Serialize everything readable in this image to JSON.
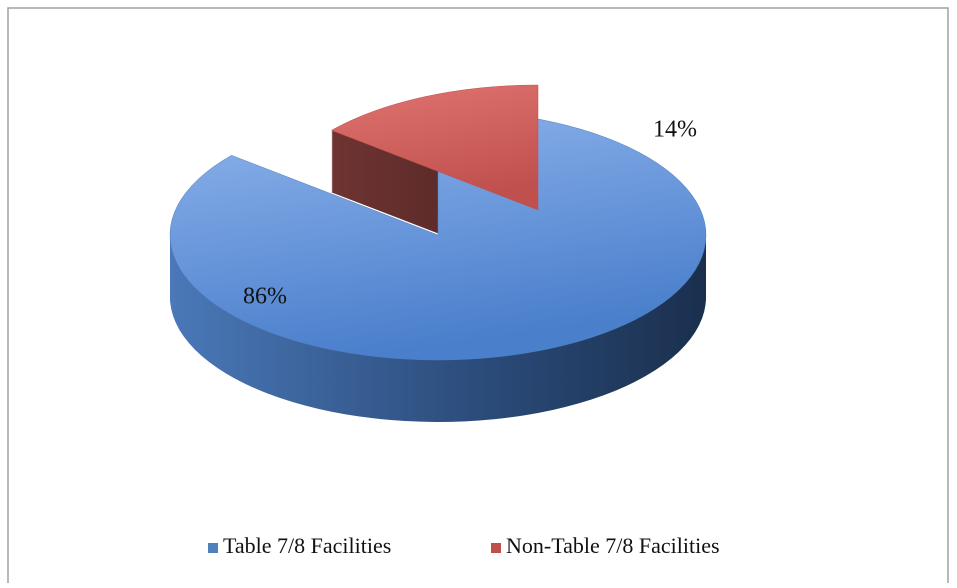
{
  "chart_data": {
    "type": "pie",
    "categories": [
      "Table 7/8 Facilities",
      "Non-Table 7/8 Facilities"
    ],
    "values": [
      86,
      14
    ],
    "value_labels": [
      "86%",
      "14%"
    ],
    "colors": [
      "#4f81bd",
      "#c0504d"
    ],
    "exploded": [
      false,
      true
    ],
    "legend": "bottom"
  }
}
